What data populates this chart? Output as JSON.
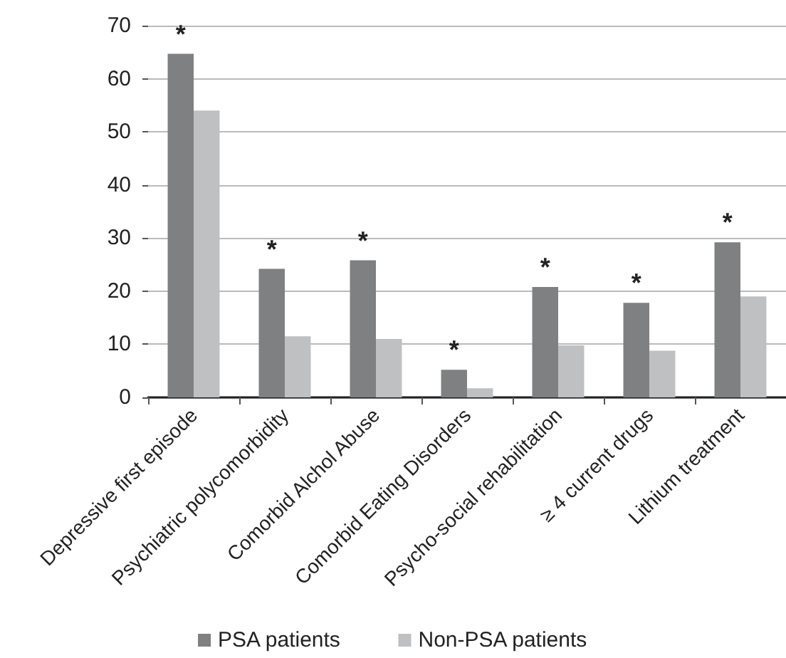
{
  "chart_data": {
    "type": "bar",
    "categories": [
      "Depressive first episode",
      "Psychiatric polycomorbidity",
      "Comorbid Alchol Abuse",
      "Comorbid Eating Disorders",
      "Psycho-social rehabilitation",
      "≥ 4 current drugs",
      "Lithium treatment"
    ],
    "series": [
      {
        "name": "PSA patients",
        "color": "#7f8081",
        "values": [
          64.7,
          24.2,
          25.8,
          5.2,
          20.8,
          17.8,
          29.2
        ]
      },
      {
        "name": "Non-PSA patients",
        "color": "#bfc0c2",
        "values": [
          54,
          11.5,
          11,
          1.7,
          9.8,
          8.8,
          19
        ]
      }
    ],
    "annotations": [
      {
        "text": "*",
        "x": "Depressive first episode",
        "y": 64.7
      },
      {
        "text": "*",
        "x": "Psychiatric polycomorbidity",
        "y": 24.2
      },
      {
        "text": "*",
        "x": "Comorbid Alchol Abuse",
        "y": 25.8
      },
      {
        "text": "*",
        "x": "Comorbid Eating Disorders",
        "y": 5.2
      },
      {
        "text": "*",
        "x": "Psycho-social rehabilitation",
        "y": 20.8
      },
      {
        "text": "*",
        "x": "≥ 4 current drugs",
        "y": 17.8
      },
      {
        "text": "*",
        "x": "Lithium treatment",
        "y": 29.2
      }
    ],
    "ylim": [
      0,
      70
    ],
    "yticks": [
      0,
      10,
      20,
      30,
      40,
      50,
      60,
      70
    ],
    "grid": "y",
    "legend": "bottom"
  }
}
